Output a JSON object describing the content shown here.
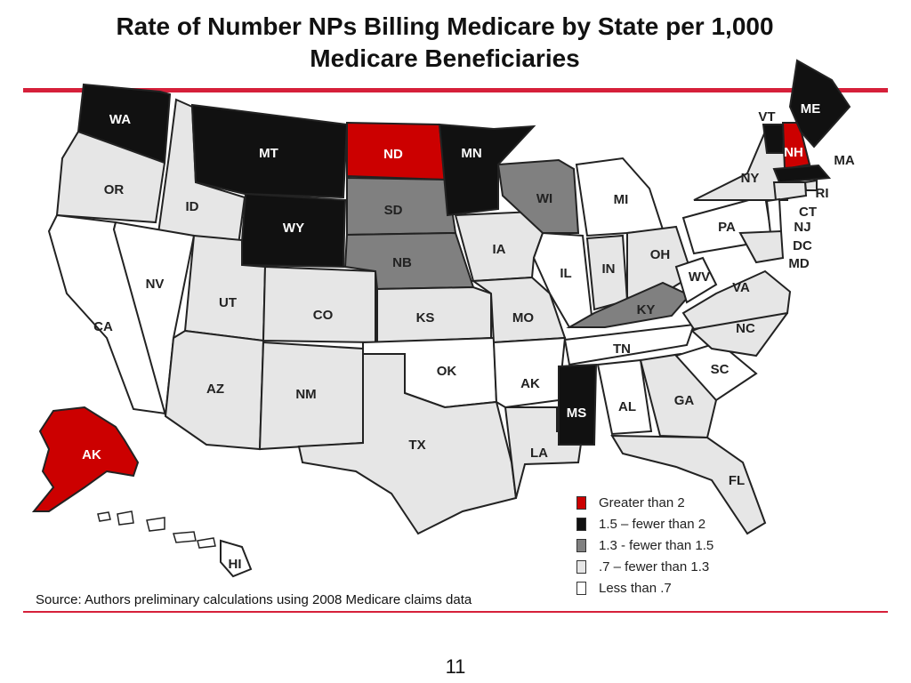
{
  "title": {
    "line1": "Rate of Number NPs Billing Medicare by State per 1,000",
    "line2": "Medicare Beneficiaries"
  },
  "colors": {
    "accent_rule": "#d6203a",
    "cat_greater_2": "#cc0000",
    "cat_1_5_to_2": "#111111",
    "cat_1_3_to_1_5": "#808080",
    "cat_0_7_to_1_3": "#e6e6e6",
    "cat_less_0_7": "#ffffff"
  },
  "legend": [
    {
      "key": "cat_greater_2",
      "label": "Greater than 2"
    },
    {
      "key": "cat_1_5_to_2",
      "label": "1.5 – fewer than 2"
    },
    {
      "key": "cat_1_3_to_1_5",
      "label": "1.3 - fewer than 1.5"
    },
    {
      "key": "cat_0_7_to_1_3",
      "label": ".7 – fewer than 1.3"
    },
    {
      "key": "cat_less_0_7",
      "label": "Less than .7"
    }
  ],
  "states": [
    {
      "abbr": "WA",
      "category": "cat_1_5_to_2"
    },
    {
      "abbr": "OR",
      "category": "cat_0_7_to_1_3"
    },
    {
      "abbr": "CA",
      "category": "cat_less_0_7"
    },
    {
      "abbr": "ID",
      "category": "cat_0_7_to_1_3"
    },
    {
      "abbr": "NV",
      "category": "cat_less_0_7"
    },
    {
      "abbr": "MT",
      "category": "cat_1_5_to_2"
    },
    {
      "abbr": "WY",
      "category": "cat_1_5_to_2"
    },
    {
      "abbr": "UT",
      "category": "cat_0_7_to_1_3"
    },
    {
      "abbr": "AZ",
      "category": "cat_0_7_to_1_3"
    },
    {
      "abbr": "CO",
      "category": "cat_0_7_to_1_3"
    },
    {
      "abbr": "NM",
      "category": "cat_0_7_to_1_3"
    },
    {
      "abbr": "ND",
      "category": "cat_greater_2"
    },
    {
      "abbr": "SD",
      "category": "cat_1_3_to_1_5"
    },
    {
      "abbr": "NB",
      "category": "cat_1_3_to_1_5"
    },
    {
      "abbr": "KS",
      "category": "cat_0_7_to_1_3"
    },
    {
      "abbr": "OK",
      "category": "cat_less_0_7"
    },
    {
      "abbr": "TX",
      "category": "cat_0_7_to_1_3"
    },
    {
      "abbr": "MN",
      "category": "cat_1_5_to_2"
    },
    {
      "abbr": "IA",
      "category": "cat_0_7_to_1_3"
    },
    {
      "abbr": "MO",
      "category": "cat_0_7_to_1_3"
    },
    {
      "abbr": "AK",
      "category": "cat_less_0_7"
    },
    {
      "abbr": "LA",
      "category": "cat_0_7_to_1_3"
    },
    {
      "abbr": "WI",
      "category": "cat_1_3_to_1_5"
    },
    {
      "abbr": "IL",
      "category": "cat_less_0_7"
    },
    {
      "abbr": "MI",
      "category": "cat_less_0_7"
    },
    {
      "abbr": "IN",
      "category": "cat_0_7_to_1_3"
    },
    {
      "abbr": "OH",
      "category": "cat_0_7_to_1_3"
    },
    {
      "abbr": "KY",
      "category": "cat_1_3_to_1_5"
    },
    {
      "abbr": "TN",
      "category": "cat_less_0_7"
    },
    {
      "abbr": "MS",
      "category": "cat_1_5_to_2"
    },
    {
      "abbr": "AL",
      "category": "cat_less_0_7"
    },
    {
      "abbr": "GA",
      "category": "cat_0_7_to_1_3"
    },
    {
      "abbr": "FL",
      "category": "cat_0_7_to_1_3"
    },
    {
      "abbr": "SC",
      "category": "cat_less_0_7"
    },
    {
      "abbr": "NC",
      "category": "cat_0_7_to_1_3"
    },
    {
      "abbr": "VA",
      "category": "cat_0_7_to_1_3"
    },
    {
      "abbr": "WV",
      "category": "cat_less_0_7"
    },
    {
      "abbr": "PA",
      "category": "cat_less_0_7"
    },
    {
      "abbr": "NY",
      "category": "cat_0_7_to_1_3"
    },
    {
      "abbr": "VT",
      "category": "cat_1_5_to_2"
    },
    {
      "abbr": "NH",
      "category": "cat_greater_2"
    },
    {
      "abbr": "ME",
      "category": "cat_1_5_to_2"
    },
    {
      "abbr": "MA",
      "category": "cat_1_5_to_2"
    },
    {
      "abbr": "RI",
      "category": "cat_0_7_to_1_3"
    },
    {
      "abbr": "CT",
      "category": "cat_0_7_to_1_3"
    },
    {
      "abbr": "NJ",
      "category": "cat_less_0_7"
    },
    {
      "abbr": "DC",
      "category": "cat_less_0_7"
    },
    {
      "abbr": "MD",
      "category": "cat_0_7_to_1_3"
    },
    {
      "abbr": "AK",
      "category": "cat_greater_2"
    },
    {
      "abbr": "HI",
      "category": "cat_less_0_7"
    }
  ],
  "source": "Source: Authors preliminary calculations using 2008 Medicare claims data",
  "page_number": "11"
}
